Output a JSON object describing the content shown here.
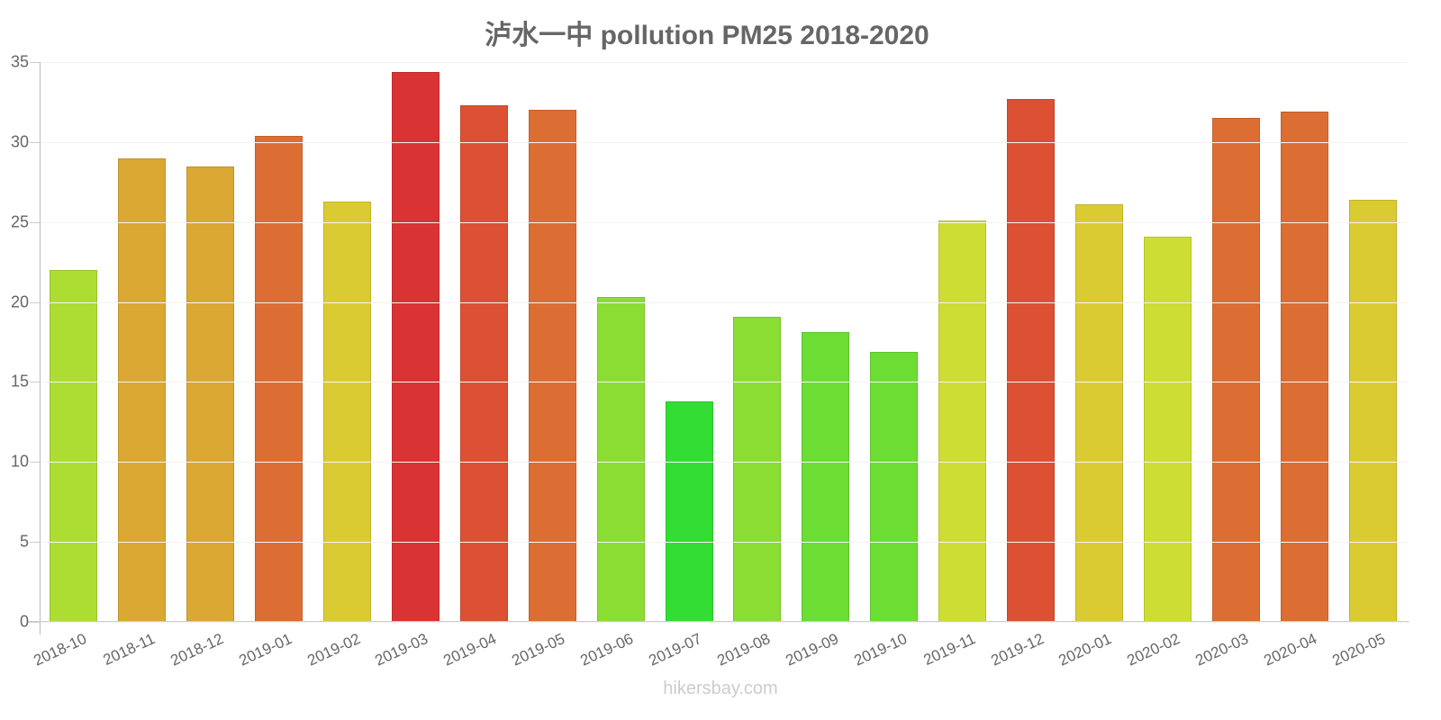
{
  "chart_data": {
    "type": "bar",
    "title": "泸水一中 pollution PM25 2018-2020",
    "xlabel": "",
    "ylabel": "",
    "ylim": [
      0,
      35
    ],
    "yticks": [
      0,
      5,
      10,
      15,
      20,
      25,
      30,
      35
    ],
    "grid": true,
    "legend": null,
    "categories": [
      "2018-10",
      "2018-11",
      "2018-12",
      "2019-01",
      "2019-02",
      "2019-03",
      "2019-04",
      "2019-05",
      "2019-06",
      "2019-07",
      "2019-08",
      "2019-09",
      "2019-10",
      "2019-11",
      "2019-12",
      "2020-01",
      "2020-02",
      "2020-03",
      "2020-04",
      "2020-05"
    ],
    "values": [
      22.0,
      29.0,
      28.5,
      30.4,
      26.3,
      34.4,
      32.3,
      32.0,
      20.3,
      13.8,
      19.1,
      18.1,
      16.9,
      25.1,
      32.7,
      26.1,
      24.1,
      31.5,
      31.9,
      26.4
    ],
    "colors": [
      "#addd33",
      "#dba833",
      "#dba833",
      "#dd6e33",
      "#dbcb33",
      "#da3333",
      "#dc5133",
      "#dd6e33",
      "#8bdd33",
      "#33dd33",
      "#8bdd33",
      "#6bdd33",
      "#6bdd33",
      "#cddd33",
      "#dc5133",
      "#dbcb33",
      "#cddd33",
      "#dd6e33",
      "#dd6e33",
      "#dbcb33"
    ],
    "footer": "hikersbay.com"
  }
}
